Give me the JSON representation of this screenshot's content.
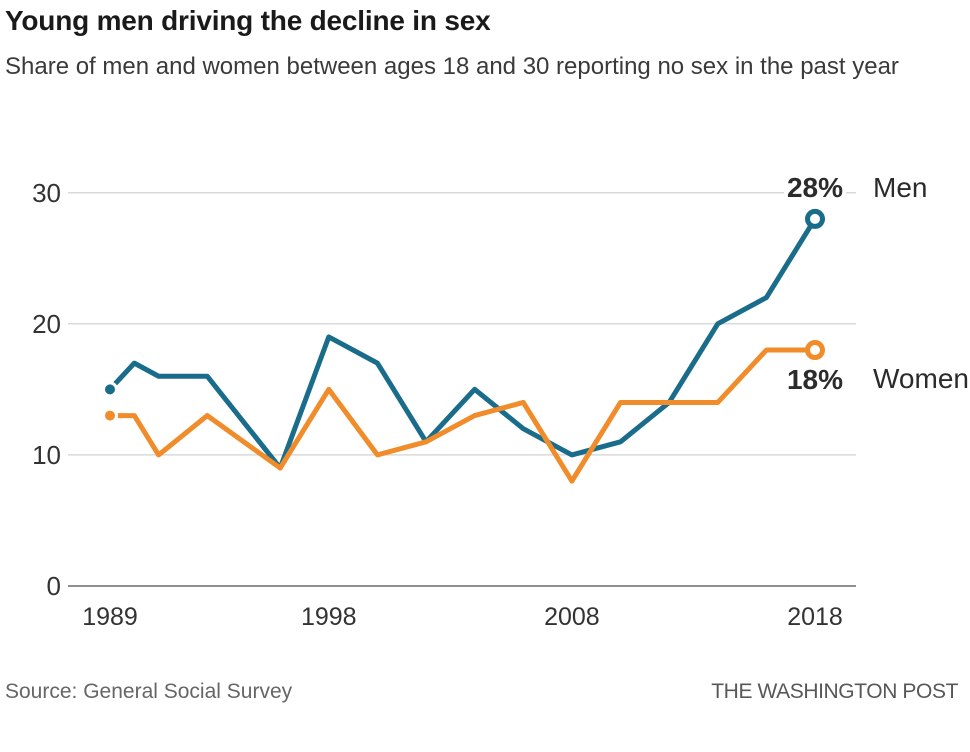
{
  "header": {
    "title": "Young men driving the decline in sex",
    "subtitle": "Share of men and women between ages 18 and 30 reporting no sex in the past year"
  },
  "chart_data": {
    "type": "line",
    "x": [
      1989,
      1990,
      1991,
      1993,
      1996,
      1998,
      2000,
      2002,
      2004,
      2006,
      2008,
      2010,
      2012,
      2014,
      2016,
      2018
    ],
    "series": [
      {
        "name": "Men",
        "color": "#1a6c8b",
        "values": [
          15,
          17,
          16,
          16,
          9,
          19,
          17,
          11,
          15,
          12,
          10,
          11,
          14,
          20,
          22,
          28
        ],
        "end_label": "28%"
      },
      {
        "name": "Women",
        "color": "#f18c2a",
        "values": [
          13,
          13,
          10,
          13,
          9,
          15,
          10,
          11,
          13,
          14,
          8,
          14,
          14,
          14,
          18,
          18
        ],
        "end_label": "18%"
      }
    ],
    "title": "Young men driving the decline in sex",
    "xlabel": "",
    "ylabel": "",
    "ylim": [
      0,
      30
    ],
    "xlim": [
      1989,
      2018
    ],
    "yticks": [
      0,
      10,
      20,
      30
    ],
    "xticks": [
      1989,
      1998,
      2008,
      2018
    ],
    "grid": "horizontal",
    "legend_position": "right-of-line-ends",
    "markers": "filled dot at first point, open circle at last point"
  },
  "footer": {
    "source": "Source: General Social Survey",
    "credit": "THE WASHINGTON POST"
  },
  "colors": {
    "men_line": "#1a6c8b",
    "women_line": "#f18c2a",
    "gridline": "#d9d9d9",
    "axis_baseline": "#8f8f8f",
    "title_text": "#1a1a1a",
    "subtitle_text": "#3a3a3a",
    "tick_text": "#333333",
    "end_label_text": "#2b2b2b",
    "source_text": "#666666",
    "credit_text": "#58585a"
  }
}
